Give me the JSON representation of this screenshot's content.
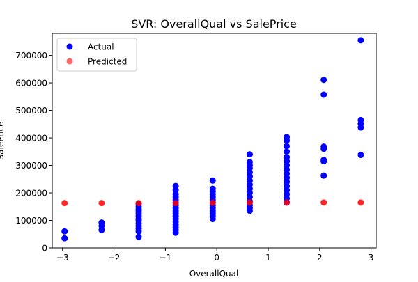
{
  "chart_data": {
    "type": "scatter",
    "title": "SVR: OverallQual vs SalePrice",
    "xlabel": "OverallQual",
    "ylabel": "SalePrice",
    "xlim": [
      -3.2,
      3.1
    ],
    "ylim": [
      0,
      780000
    ],
    "x_ticks": [
      -3,
      -2,
      -1,
      0,
      1,
      2,
      3
    ],
    "x_tick_labels": [
      "−3",
      "−2",
      "−1",
      "0",
      "1",
      "2",
      "3"
    ],
    "y_ticks": [
      0,
      100000,
      200000,
      300000,
      400000,
      500000,
      600000,
      700000
    ],
    "y_tick_labels": [
      "0",
      "100000",
      "200000",
      "300000",
      "400000",
      "500000",
      "600000",
      "700000"
    ],
    "grid": false,
    "legend_position": "upper-left",
    "series": [
      {
        "name": "Actual",
        "color": "#0000ff",
        "points": [
          [
            -2.96,
            35000
          ],
          [
            -2.96,
            60000
          ],
          [
            -2.24,
            65000
          ],
          [
            -2.24,
            80000
          ],
          [
            -2.24,
            92000
          ],
          [
            -1.52,
            40000
          ],
          [
            -1.52,
            60000
          ],
          [
            -1.52,
            70000
          ],
          [
            -1.52,
            80000
          ],
          [
            -1.52,
            90000
          ],
          [
            -1.52,
            100000
          ],
          [
            -1.52,
            105000
          ],
          [
            -1.52,
            115000
          ],
          [
            -1.52,
            125000
          ],
          [
            -1.52,
            135000
          ],
          [
            -1.52,
            140000
          ],
          [
            -1.52,
            150000
          ],
          [
            -1.52,
            160000
          ],
          [
            -0.8,
            55000
          ],
          [
            -0.8,
            65000
          ],
          [
            -0.8,
            75000
          ],
          [
            -0.8,
            85000
          ],
          [
            -0.8,
            95000
          ],
          [
            -0.8,
            105000
          ],
          [
            -0.8,
            115000
          ],
          [
            -0.8,
            125000
          ],
          [
            -0.8,
            135000
          ],
          [
            -0.8,
            145000
          ],
          [
            -0.8,
            155000
          ],
          [
            -0.8,
            165000
          ],
          [
            -0.8,
            175000
          ],
          [
            -0.8,
            185000
          ],
          [
            -0.8,
            195000
          ],
          [
            -0.8,
            210000
          ],
          [
            -0.8,
            225000
          ],
          [
            -0.08,
            105000
          ],
          [
            -0.08,
            115000
          ],
          [
            -0.08,
            125000
          ],
          [
            -0.08,
            135000
          ],
          [
            -0.08,
            145000
          ],
          [
            -0.08,
            155000
          ],
          [
            -0.08,
            165000
          ],
          [
            -0.08,
            175000
          ],
          [
            -0.08,
            185000
          ],
          [
            -0.08,
            195000
          ],
          [
            -0.08,
            205000
          ],
          [
            -0.08,
            215000
          ],
          [
            -0.08,
            245000
          ],
          [
            0.64,
            135000
          ],
          [
            0.64,
            145000
          ],
          [
            0.64,
            155000
          ],
          [
            0.64,
            170000
          ],
          [
            0.64,
            185000
          ],
          [
            0.64,
            200000
          ],
          [
            0.64,
            215000
          ],
          [
            0.64,
            230000
          ],
          [
            0.64,
            245000
          ],
          [
            0.64,
            260000
          ],
          [
            0.64,
            275000
          ],
          [
            0.64,
            290000
          ],
          [
            0.64,
            300000
          ],
          [
            0.64,
            312000
          ],
          [
            0.64,
            340000
          ],
          [
            1.36,
            165000
          ],
          [
            1.36,
            180000
          ],
          [
            1.36,
            195000
          ],
          [
            1.36,
            210000
          ],
          [
            1.36,
            225000
          ],
          [
            1.36,
            240000
          ],
          [
            1.36,
            255000
          ],
          [
            1.36,
            270000
          ],
          [
            1.36,
            285000
          ],
          [
            1.36,
            300000
          ],
          [
            1.36,
            315000
          ],
          [
            1.36,
            330000
          ],
          [
            1.36,
            350000
          ],
          [
            1.36,
            370000
          ],
          [
            1.36,
            390000
          ],
          [
            1.36,
            403000
          ],
          [
            2.08,
            263000
          ],
          [
            2.08,
            315000
          ],
          [
            2.08,
            320000
          ],
          [
            2.08,
            360000
          ],
          [
            2.08,
            368000
          ],
          [
            2.08,
            557000
          ],
          [
            2.08,
            611000
          ],
          [
            2.8,
            338000
          ],
          [
            2.8,
            438000
          ],
          [
            2.8,
            452000
          ],
          [
            2.8,
            465000
          ],
          [
            2.8,
            755000
          ]
        ]
      },
      {
        "name": "Predicted",
        "color": "#ff0000",
        "points": [
          [
            -2.96,
            163000
          ],
          [
            -2.24,
            163000
          ],
          [
            -1.52,
            163000
          ],
          [
            -0.8,
            163000
          ],
          [
            -0.08,
            164000
          ],
          [
            0.64,
            165000
          ],
          [
            1.36,
            165000
          ],
          [
            2.08,
            165000
          ],
          [
            2.8,
            165000
          ]
        ]
      }
    ]
  }
}
